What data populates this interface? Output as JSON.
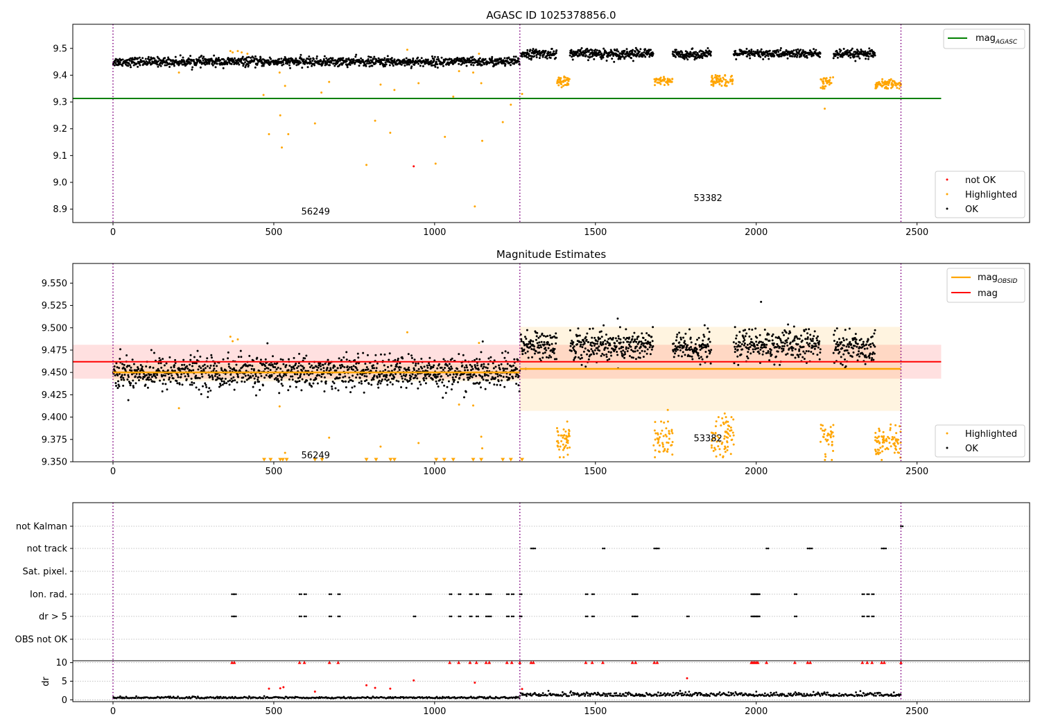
{
  "chart_data": [
    {
      "type": "scatter",
      "title": "AGASC ID 1025378856.0",
      "xlim": [
        -125,
        2850
      ],
      "ylim": [
        8.85,
        9.59
      ],
      "xticks": [
        0,
        500,
        1000,
        1500,
        2000,
        2500
      ],
      "yticks": [
        8.9,
        9.0,
        9.1,
        9.2,
        9.3,
        9.4,
        9.5
      ],
      "ytick_labels": [
        "8.9",
        "9.0",
        "9.1",
        "9.2",
        "9.3",
        "9.4",
        "9.5"
      ],
      "grid": false,
      "obsid_boundaries": [
        0,
        1265,
        2450
      ],
      "obsid_annotations": [
        {
          "text": "56249",
          "x": 630,
          "y": 8.88
        },
        {
          "text": "53382",
          "x": 1850,
          "y": 8.93
        }
      ],
      "reference_lines": [
        {
          "name": "AGASC",
          "value": 9.313,
          "x": [
            -125,
            2575
          ],
          "color": "#008000"
        }
      ],
      "legend": {
        "upper_right": {
          "base": "mag",
          "sub": "AGASC",
          "color": "#008000"
        },
        "lower_right": [
          {
            "label": "not OK",
            "color": "#ff0000"
          },
          {
            "label": "Highlighted",
            "color": "#ffa500"
          },
          {
            "label": "OK",
            "color": "#000000"
          }
        ]
      },
      "highlighted_points": [
        [
          205,
          9.41
        ],
        [
          365,
          9.49
        ],
        [
          372,
          9.485
        ],
        [
          388,
          9.49
        ],
        [
          400,
          9.485
        ],
        [
          418,
          9.48
        ],
        [
          468,
          9.326
        ],
        [
          485,
          9.18
        ],
        [
          518,
          9.41
        ],
        [
          520,
          9.25
        ],
        [
          525,
          9.13
        ],
        [
          535,
          9.36
        ],
        [
          545,
          9.18
        ],
        [
          628,
          9.22
        ],
        [
          648,
          9.335
        ],
        [
          672,
          9.375
        ],
        [
          788,
          9.065
        ],
        [
          815,
          9.23
        ],
        [
          832,
          9.365
        ],
        [
          862,
          9.185
        ],
        [
          875,
          9.345
        ],
        [
          915,
          9.495
        ],
        [
          950,
          9.37
        ],
        [
          1003,
          9.07
        ],
        [
          1032,
          9.17
        ],
        [
          1058,
          9.32
        ],
        [
          1076,
          9.415
        ],
        [
          1120,
          9.41
        ],
        [
          1125,
          8.91
        ],
        [
          1138,
          9.48
        ],
        [
          1145,
          9.37
        ],
        [
          1148,
          9.155
        ],
        [
          1212,
          9.225
        ],
        [
          1237,
          9.29
        ],
        [
          1272,
          9.33
        ],
        [
          2213,
          9.275
        ]
      ],
      "highlighted_clusters": [
        {
          "x": [
            1380,
            1420
          ],
          "y": [
            9.355,
            9.395
          ],
          "count": 45
        },
        {
          "x": [
            1680,
            1740
          ],
          "y": [
            9.362,
            9.395
          ],
          "count": 50
        },
        {
          "x": [
            1860,
            1930
          ],
          "y": [
            9.36,
            9.4
          ],
          "count": 70
        },
        {
          "x": [
            2200,
            2240
          ],
          "y": [
            9.35,
            9.4
          ],
          "count": 35
        },
        {
          "x": [
            2370,
            2450
          ],
          "y": [
            9.35,
            9.385
          ],
          "count": 80
        }
      ],
      "not_ok_points": [
        [
          935,
          9.06
        ]
      ],
      "ok_segments": [
        {
          "x": [
            0,
            1265
          ],
          "center": 9.45,
          "spread": 0.02,
          "count": 1200
        },
        {
          "x": [
            1268,
            1380
          ],
          "center": 9.48,
          "spread": 0.02,
          "count": 110
        },
        {
          "x": [
            1420,
            1680
          ],
          "center": 9.48,
          "spread": 0.022,
          "count": 260
        },
        {
          "x": [
            1740,
            1860
          ],
          "center": 9.478,
          "spread": 0.02,
          "count": 120
        },
        {
          "x": [
            1930,
            2200
          ],
          "center": 9.48,
          "spread": 0.02,
          "count": 260
        },
        {
          "x": [
            2240,
            2370
          ],
          "center": 9.478,
          "spread": 0.02,
          "count": 130
        }
      ]
    },
    {
      "type": "scatter",
      "title": "Magnitude Estimates",
      "xlim": [
        -125,
        2850
      ],
      "ylim": [
        9.35,
        9.572
      ],
      "xticks": [
        0,
        500,
        1000,
        1500,
        2000,
        2500
      ],
      "yticks": [
        9.35,
        9.375,
        9.4,
        9.425,
        9.45,
        9.475,
        9.5,
        9.525,
        9.55
      ],
      "ytick_labels": [
        "9.350",
        "9.375",
        "9.400",
        "9.425",
        "9.450",
        "9.475",
        "9.500",
        "9.525",
        "9.550"
      ],
      "grid": false,
      "obsid_boundaries": [
        0,
        1265,
        2450
      ],
      "obsid_annotations": [
        {
          "text": "56249",
          "x": 630,
          "y": 9.354
        },
        {
          "text": "53382",
          "x": 1850,
          "y": 9.373
        }
      ],
      "mag_line": {
        "value": 9.462,
        "x": [
          -125,
          2575
        ],
        "band": [
          9.443,
          9.481
        ],
        "color": "#ff0000"
      },
      "mag_obsid": [
        {
          "x": [
            0,
            1265
          ],
          "value": 9.45,
          "band": [
            9.44,
            9.46
          ]
        },
        {
          "x": [
            1265,
            2450
          ],
          "value": 9.454,
          "band": [
            9.407,
            9.501
          ]
        }
      ],
      "below_range_markers_x": [
        470,
        490,
        520,
        528,
        540,
        628,
        650,
        788,
        818,
        863,
        875,
        1005,
        1030,
        1058,
        1120,
        1145,
        1212,
        1237,
        1272
      ],
      "legend": {
        "upper_right": [
          {
            "base": "mag",
            "sub": "OBSID",
            "color": "#ffa500"
          },
          {
            "label": "mag",
            "color": "#ff0000"
          }
        ],
        "lower_right": [
          {
            "label": "Highlighted",
            "color": "#ffa500"
          },
          {
            "label": "OK",
            "color": "#000000"
          }
        ]
      },
      "highlighted_points": [
        [
          205,
          9.41
        ],
        [
          365,
          9.49
        ],
        [
          372,
          9.485
        ],
        [
          388,
          9.487
        ],
        [
          518,
          9.412
        ],
        [
          535,
          9.36
        ],
        [
          672,
          9.377
        ],
        [
          832,
          9.367
        ],
        [
          915,
          9.495
        ],
        [
          950,
          9.371
        ],
        [
          1076,
          9.414
        ],
        [
          1120,
          9.413
        ],
        [
          1138,
          9.483
        ],
        [
          1145,
          9.378
        ],
        [
          1148,
          9.365
        ],
        [
          1725,
          9.408
        ],
        [
          1902,
          9.404
        ]
      ],
      "highlighted_clusters": [
        {
          "x": [
            1380,
            1420
          ],
          "y": [
            9.355,
            9.395
          ],
          "count": 45
        },
        {
          "x": [
            1680,
            1740
          ],
          "y": [
            9.355,
            9.395
          ],
          "count": 50
        },
        {
          "x": [
            1860,
            1930
          ],
          "y": [
            9.355,
            9.4
          ],
          "count": 70
        },
        {
          "x": [
            2200,
            2240
          ],
          "y": [
            9.352,
            9.4
          ],
          "count": 35
        },
        {
          "x": [
            2370,
            2450
          ],
          "y": [
            9.352,
            9.392
          ],
          "count": 80
        }
      ],
      "ok_segments": [
        {
          "x": [
            0,
            1265
          ],
          "center": 9.45,
          "spread": 0.022,
          "count": 1200
        },
        {
          "x": [
            1268,
            1380
          ],
          "center": 9.48,
          "spread": 0.02,
          "count": 110
        },
        {
          "x": [
            1420,
            1680
          ],
          "center": 9.48,
          "spread": 0.022,
          "count": 260
        },
        {
          "x": [
            1740,
            1860
          ],
          "center": 9.478,
          "spread": 0.02,
          "count": 120
        },
        {
          "x": [
            1930,
            2200
          ],
          "center": 9.48,
          "spread": 0.022,
          "count": 260
        },
        {
          "x": [
            2240,
            2370
          ],
          "center": 9.478,
          "spread": 0.02,
          "count": 130
        }
      ],
      "outlier_points": [
        [
          2015,
          9.529
        ]
      ]
    },
    {
      "type": "scatter",
      "title": "",
      "xlim": [
        -125,
        2850
      ],
      "xticks": [
        0,
        500,
        1000,
        1500,
        2000,
        2500
      ],
      "category_rows": [
        "not Kalman",
        "not track",
        "Sat. pixel.",
        "Ion. rad.",
        "dr > 5",
        "OBS not OK"
      ],
      "grid": true,
      "obsid_boundaries": [
        0,
        1265,
        2450
      ],
      "flag_events": {
        "not Kalman": [
          2450
        ],
        "not track": [
          1300,
          1307,
          1523,
          1683,
          1692,
          2032,
          2160,
          2168,
          2390,
          2398
        ],
        "Sat. pixel.": [],
        "Ion. rad.": [
          370,
          377,
          580,
          595,
          673,
          700,
          1047,
          1075,
          1110,
          1130,
          1160,
          1170,
          1225,
          1240,
          1265,
          1470,
          1490,
          1615,
          1625,
          1985,
          1990,
          1995,
          2000,
          2005,
          2120,
          2330,
          2345,
          2360
        ],
        "dr > 5": [
          370,
          377,
          580,
          595,
          673,
          700,
          935,
          1047,
          1075,
          1110,
          1130,
          1160,
          1170,
          1225,
          1240,
          1265,
          1470,
          1490,
          1615,
          1625,
          1785,
          1985,
          1990,
          1995,
          2000,
          2005,
          2120,
          2330,
          2345,
          2360
        ],
        "OBS not OK": []
      }
    },
    {
      "type": "scatter",
      "title": "",
      "ylabel": "dr",
      "xlim": [
        -125,
        2850
      ],
      "ylim": [
        -0.5,
        10.5
      ],
      "xticks": [
        0,
        500,
        1000,
        1500,
        2000,
        2500
      ],
      "xtick_labels": [
        "0",
        "500",
        "1000",
        "1500",
        "2000",
        "2500"
      ],
      "yticks": [
        0,
        5,
        10
      ],
      "ytick_labels": [
        "0",
        "5",
        "10"
      ],
      "grid": true,
      "obsid_boundaries": [
        0,
        1265,
        2450
      ],
      "clipped_markers_x": [
        370,
        377,
        580,
        595,
        673,
        700,
        1047,
        1075,
        1110,
        1130,
        1160,
        1170,
        1225,
        1240,
        1265,
        1300,
        1307,
        1470,
        1490,
        1523,
        1615,
        1625,
        1683,
        1692,
        1985,
        1990,
        1995,
        2000,
        2005,
        2032,
        2120,
        2160,
        2168,
        2330,
        2345,
        2360,
        2390,
        2398,
        2450
      ],
      "outlier_points": [
        [
          485,
          3.0
        ],
        [
          520,
          3.1
        ],
        [
          530,
          3.4
        ],
        [
          628,
          2.2
        ],
        [
          788,
          3.9
        ],
        [
          815,
          3.2
        ],
        [
          862,
          3.0
        ],
        [
          935,
          5.2
        ],
        [
          1125,
          4.6
        ],
        [
          1272,
          2.9
        ],
        [
          1785,
          5.8
        ]
      ],
      "baseline_segments": [
        {
          "x": [
            0,
            1265
          ],
          "center": 0.4,
          "spread": 0.35,
          "count": 420
        },
        {
          "x": [
            1265,
            2450
          ],
          "center": 1.0,
          "spread": 0.8,
          "count": 420
        }
      ]
    }
  ]
}
